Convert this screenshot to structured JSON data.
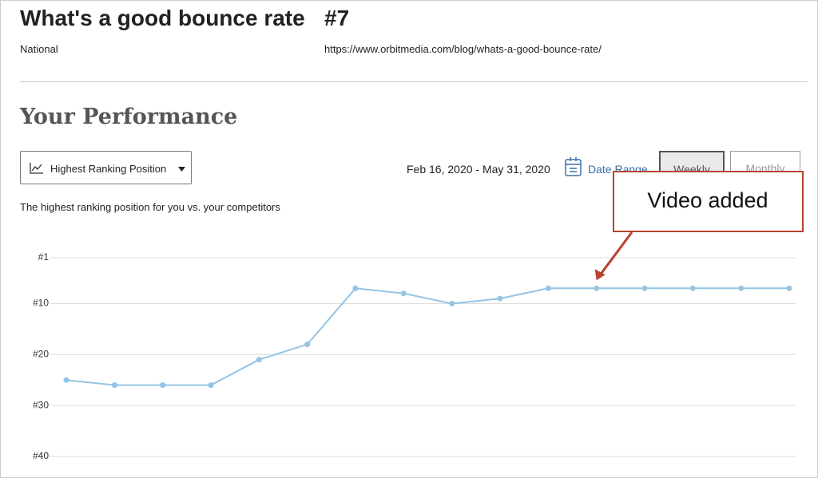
{
  "header": {
    "title": "What's a good bounce rate",
    "rank": "#7",
    "location": "National",
    "url": "https://www.orbitmedia.com/blog/whats-a-good-bounce-rate/"
  },
  "section_title": "Your Performance",
  "controls": {
    "metric": "Highest Ranking Position",
    "date_span": "Feb 16, 2020 - May 31, 2020",
    "date_range": "Date Range",
    "weekly": "Weekly",
    "monthly": "Monthly"
  },
  "chart_data": {
    "type": "line",
    "subtitle": "The highest ranking position for you vs. your competitors",
    "categories": [
      null,
      null,
      null,
      null,
      null,
      null,
      null,
      null,
      null,
      null,
      null,
      null,
      null,
      null,
      null,
      null
    ],
    "values": [
      25,
      26,
      26,
      26,
      21,
      18,
      7,
      8,
      10,
      9,
      7,
      7,
      7,
      7,
      7,
      7
    ],
    "color": "#93c4e4",
    "ylim": [
      1,
      40
    ],
    "y_reversed": true,
    "yticks": [
      {
        "value": 1,
        "label": "#1"
      },
      {
        "value": 10,
        "label": "#10"
      },
      {
        "value": 20,
        "label": "#20"
      },
      {
        "value": 30,
        "label": "#30"
      },
      {
        "value": 40,
        "label": "#40"
      }
    ],
    "grid": true,
    "annotation": "Video added"
  }
}
